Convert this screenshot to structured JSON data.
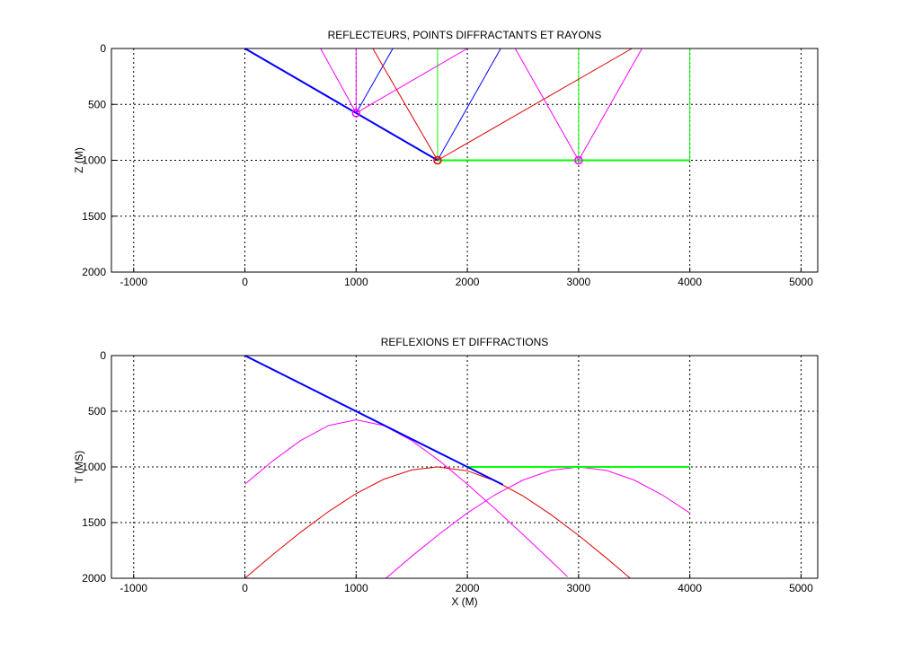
{
  "chart_data": [
    {
      "type": "line",
      "title": "REFLECTEURS, POINTS DIFFRACTANTS ET RAYONS",
      "y_label": "Z (M)",
      "xlim": [
        -1200,
        5150
      ],
      "ylim": [
        0,
        2000
      ],
      "y_reversed": true,
      "grid": true,
      "xticks": [
        -1000,
        0,
        1000,
        2000,
        3000,
        4000,
        5000
      ],
      "yticks": [
        0,
        500,
        1000,
        1500,
        2000
      ],
      "series": [
        {
          "color": "#0000ff",
          "width": 2,
          "x": [
            0,
            1732
          ],
          "y": [
            0,
            1000
          ]
        },
        {
          "color": "#00ff00",
          "width": 2,
          "x": [
            1732,
            4000
          ],
          "y": [
            1000,
            1000
          ]
        },
        {
          "color": "#00ff00",
          "width": 1,
          "x": [
            1732,
            1732
          ],
          "y": [
            0,
            1000
          ]
        },
        {
          "color": "#00ff00",
          "width": 1,
          "x": [
            3000,
            3000
          ],
          "y": [
            0,
            1000
          ]
        },
        {
          "color": "#00ff00",
          "width": 1,
          "x": [
            4000,
            4000
          ],
          "y": [
            0,
            1000
          ]
        },
        {
          "color": "#ff00ff",
          "width": 1,
          "x": [
            680,
            1000
          ],
          "y": [
            0,
            577
          ]
        },
        {
          "color": "#ff00ff",
          "width": 1,
          "x": [
            1000,
            1000
          ],
          "y": [
            0,
            577
          ]
        },
        {
          "color": "#ff00ff",
          "width": 1,
          "x": [
            2000,
            1000
          ],
          "y": [
            0,
            577
          ]
        },
        {
          "color": "#0000ff",
          "width": 1,
          "x": [
            1330,
            1000
          ],
          "y": [
            0,
            577
          ]
        },
        {
          "color": "#0000ff",
          "width": 1,
          "x": [
            2300,
            1732
          ],
          "y": [
            0,
            1000
          ]
        },
        {
          "color": "#e00000",
          "width": 1,
          "x": [
            1150,
            1732
          ],
          "y": [
            0,
            1000
          ]
        },
        {
          "color": "#e00000",
          "width": 1,
          "x": [
            3480,
            1732
          ],
          "y": [
            0,
            1000
          ]
        },
        {
          "color": "#ff00ff",
          "width": 1,
          "x": [
            2430,
            3000
          ],
          "y": [
            0,
            1000
          ]
        },
        {
          "color": "#ff00ff",
          "width": 1,
          "x": [
            3570,
            3000
          ],
          "y": [
            0,
            1000
          ]
        }
      ],
      "markers": [
        {
          "color": "#ff00ff",
          "x": 1000,
          "y": 577
        },
        {
          "color": "#e00000",
          "x": 1732,
          "y": 1000
        },
        {
          "color": "#ff00ff",
          "x": 3000,
          "y": 1000
        }
      ]
    },
    {
      "type": "line",
      "title": "REFLEXIONS ET DIFFRACTIONS",
      "y_label": "T (MS)",
      "x_label": "X (M)",
      "xlim": [
        -1200,
        5150
      ],
      "ylim": [
        0,
        2000
      ],
      "y_reversed": true,
      "grid": true,
      "xticks": [
        -1000,
        0,
        1000,
        2000,
        3000,
        4000,
        5000
      ],
      "yticks": [
        0,
        500,
        1000,
        1500,
        2000
      ],
      "series": [
        {
          "color": "#ff00ff",
          "width": 1,
          "x": [
            0,
            250,
            500,
            750,
            1000,
            1250,
            1500,
            1750,
            2000,
            2250,
            2500,
            2750,
            2900
          ],
          "y": [
            1155,
            946,
            764,
            629,
            577,
            629,
            764,
            946,
            1155,
            1377,
            1607,
            1843,
            1986
          ]
        },
        {
          "color": "#e00000",
          "width": 1,
          "x": [
            0,
            250,
            500,
            750,
            1000,
            1250,
            1500,
            1732,
            2000,
            2250,
            2500,
            2750,
            3000,
            3250,
            3464
          ],
          "y": [
            2000,
            1788,
            1587,
            1402,
            1239,
            1110,
            1027,
            1000,
            1035,
            1126,
            1261,
            1427,
            1615,
            1818,
            2000
          ]
        },
        {
          "color": "#ff00ff",
          "width": 1,
          "x": [
            1268,
            1500,
            1750,
            2000,
            2250,
            2500,
            2750,
            3000,
            3250,
            3500,
            3750,
            4000
          ],
          "y": [
            2000,
            1803,
            1601,
            1414,
            1250,
            1118,
            1031,
            1000,
            1031,
            1118,
            1250,
            1414
          ]
        },
        {
          "color": "#00ff00",
          "width": 2,
          "x": [
            2000,
            4000
          ],
          "y": [
            1000,
            1000
          ]
        },
        {
          "color": "#0000ff",
          "width": 2,
          "x": [
            0,
            2320
          ],
          "y": [
            0,
            1160
          ]
        }
      ],
      "markers": []
    }
  ]
}
